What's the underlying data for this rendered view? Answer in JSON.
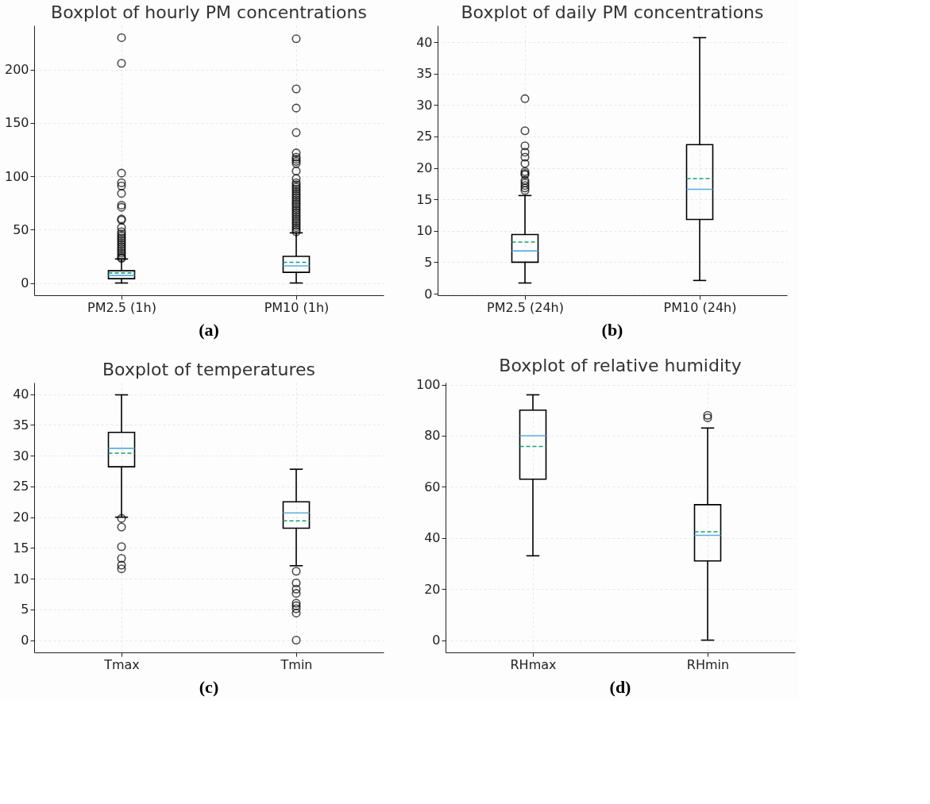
{
  "chart_data": [
    {
      "type": "box",
      "title": "Boxplot of hourly PM concentrations",
      "categories": [
        "PM2.5 (1h)",
        "PM10 (1h)"
      ],
      "ylim": [
        -11.5,
        241.5
      ],
      "yticks": [
        0,
        50,
        100,
        150,
        200
      ],
      "grid": true,
      "annotations": [
        "(a)"
      ],
      "boxes": [
        {
          "low": 0,
          "q1": 4,
          "median": 7,
          "q3": 11.5,
          "high": 22.5,
          "mean": 9.4,
          "outliers": [
            23,
            24,
            26,
            28,
            30,
            32,
            34,
            36,
            38,
            40,
            42,
            44,
            46,
            48,
            52,
            59,
            60,
            71,
            73,
            84,
            91,
            94,
            103,
            206,
            230
          ]
        },
        {
          "low": 0,
          "q1": 10,
          "median": 16,
          "q3": 25,
          "high": 47,
          "mean": 19.4,
          "outliers": [
            48,
            50,
            52,
            54,
            56,
            58,
            60,
            62,
            64,
            66,
            68,
            70,
            72,
            74,
            76,
            78,
            80,
            82,
            84,
            86,
            88,
            90,
            92,
            94,
            98,
            105,
            112,
            114,
            116,
            118,
            122,
            141,
            164,
            182,
            229
          ]
        }
      ]
    },
    {
      "type": "box",
      "title": "Boxplot of daily PM concentrations",
      "categories": [
        "PM2.5 (24h)",
        "PM10 (24h)"
      ],
      "ylim": [
        -0.25,
        42.65
      ],
      "yticks": [
        0,
        5,
        10,
        15,
        20,
        25,
        30,
        35,
        40
      ],
      "grid": true,
      "annotations": [
        "(b)"
      ],
      "boxes": [
        {
          "low": 1.7,
          "q1": 5.0,
          "median": 6.8,
          "q3": 9.4,
          "high": 15.6,
          "mean": 8.2,
          "outliers": [
            16.4,
            16.8,
            17.2,
            17.6,
            18.0,
            18.9,
            19.1,
            19.4,
            20.7,
            21.7,
            22.5,
            23.5,
            25.9,
            31.0
          ]
        },
        {
          "low": 2.1,
          "q1": 11.8,
          "median": 16.6,
          "q3": 23.7,
          "high": 40.7,
          "mean": 18.3
        }
      ]
    },
    {
      "type": "box",
      "title": "Boxplot of temperatures",
      "categories": [
        "Tmax",
        "Tmin"
      ],
      "ylim": [
        -2,
        41.9
      ],
      "yticks": [
        0,
        5,
        10,
        15,
        20,
        25,
        30,
        35,
        40
      ],
      "grid": true,
      "annotations": [
        "(c)"
      ],
      "boxes": [
        {
          "low": 20.0,
          "q1": 28.2,
          "median": 31.2,
          "q3": 33.8,
          "high": 39.9,
          "mean": 30.4,
          "outliers": [
            19.8,
            18.4,
            15.2,
            13.3,
            12.2,
            11.6
          ]
        },
        {
          "low": 12.1,
          "q1": 18.2,
          "median": 20.7,
          "q3": 22.5,
          "high": 27.8,
          "mean": 19.4,
          "outliers": [
            11.2,
            9.3,
            8.3,
            7.6,
            6.0,
            5.6,
            5.1,
            4.4,
            0
          ]
        }
      ]
    },
    {
      "type": "box",
      "title": "Boxplot of relative humidity",
      "categories": [
        "RHmax",
        "RHmin"
      ],
      "ylim": [
        -4.8,
        100.8
      ],
      "yticks": [
        0,
        20,
        40,
        60,
        80,
        100
      ],
      "grid": true,
      "annotations": [
        "(d)"
      ],
      "boxes": [
        {
          "low": 33,
          "q1": 63,
          "median": 80,
          "q3": 90,
          "high": 96,
          "mean": 75.8
        },
        {
          "low": 0,
          "q1": 31,
          "median": 41,
          "q3": 53,
          "high": 83,
          "mean": 42.4,
          "outliers": [
            87,
            88
          ]
        }
      ]
    }
  ]
}
